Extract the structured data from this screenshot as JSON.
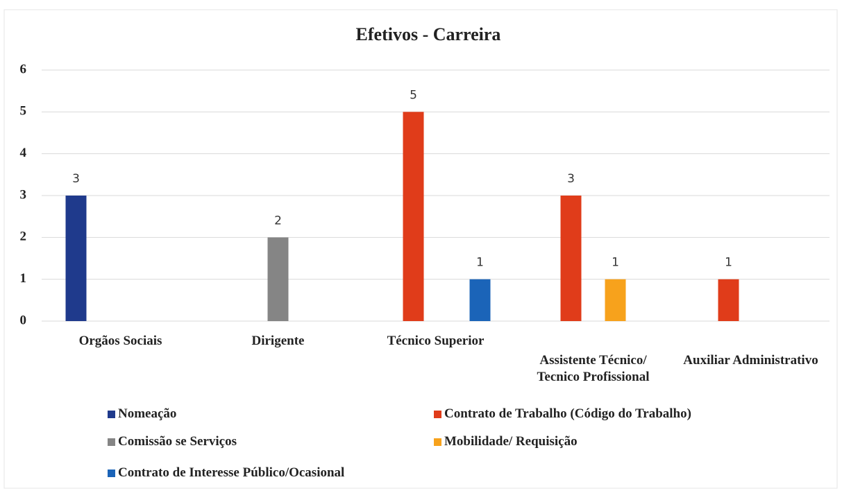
{
  "chart_data": {
    "type": "bar",
    "title": "Efetivos - Carreira",
    "categories": [
      "Orgãos Sociais",
      "Dirigente",
      "Técnico Superior",
      "Assistente Técnico/ Tecnico Profissional",
      "Auxiliar Administrativo"
    ],
    "series": [
      {
        "name": "Nomeação",
        "color": "#1f3a8c",
        "values": [
          3,
          null,
          null,
          null,
          null
        ]
      },
      {
        "name": "Contrato de Trabalho (Código do Trabalho)",
        "color": "#e03c1a",
        "values": [
          null,
          null,
          5,
          3,
          1
        ]
      },
      {
        "name": "Comissão se Serviços",
        "color": "#858585",
        "values": [
          null,
          2,
          null,
          null,
          null
        ]
      },
      {
        "name": "Mobilidade/ Requisição",
        "color": "#f7a21c",
        "values": [
          null,
          null,
          null,
          1,
          null
        ]
      },
      {
        "name": "Contrato de Interesse Público/Ocasional",
        "color": "#1b64b8",
        "values": [
          null,
          null,
          1,
          null,
          null
        ]
      }
    ],
    "ylim": [
      0,
      6
    ],
    "yticks": [
      0,
      1,
      2,
      3,
      4,
      5,
      6
    ],
    "grid": true,
    "legend": "bottom"
  }
}
